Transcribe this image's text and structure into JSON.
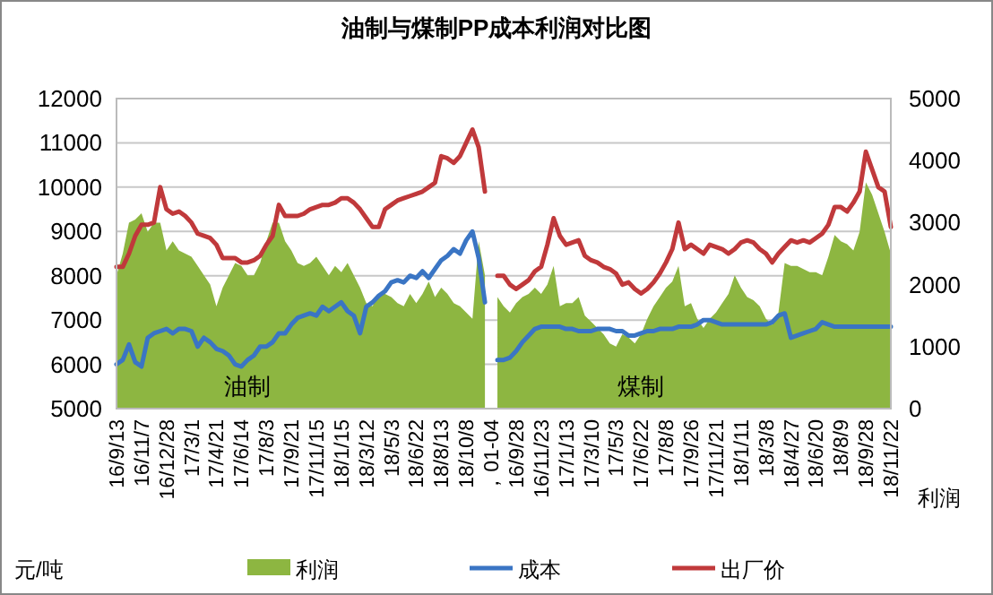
{
  "chart_data": {
    "type": "line",
    "title": "油制与煤制PP成本利润对比图",
    "ylabel": "元/吨",
    "y2label": "利润",
    "annotations": [
      "油制",
      "煤制"
    ],
    "categories": [
      "16/9/13",
      null,
      null,
      null,
      "16/11/7",
      null,
      null,
      null,
      "16/12/28",
      null,
      null,
      null,
      "17/3/1",
      null,
      null,
      null,
      "17/4/21",
      null,
      null,
      null,
      "17/6/14",
      null,
      null,
      null,
      "17/8/3",
      null,
      null,
      null,
      "17/9/21",
      null,
      null,
      null,
      "17/11/15",
      null,
      null,
      null,
      "18/1/15",
      null,
      null,
      null,
      "18/3/12",
      null,
      null,
      null,
      "18/5/3",
      null,
      null,
      null,
      "18/6/22",
      null,
      null,
      null,
      "18/8/13",
      null,
      null,
      null,
      "18/10/8",
      null,
      null,
      null,
      "，01-04",
      null,
      null,
      null,
      "16/9/28",
      null,
      null,
      null,
      "16/11/23",
      null,
      null,
      null,
      "17/1/13",
      null,
      null,
      null,
      "17/3/10",
      null,
      null,
      null,
      "17/5/3",
      null,
      null,
      null,
      "17/6/22",
      null,
      null,
      null,
      "17/8/8",
      null,
      null,
      null,
      "17/9/26",
      null,
      null,
      null,
      "17/11/21",
      null,
      null,
      null,
      "18/1/11",
      null,
      null,
      null,
      "18/3/8",
      null,
      null,
      null,
      "18/4/27",
      null,
      null,
      null,
      "18/6/20",
      null,
      null,
      null,
      "18/8/9",
      null,
      null,
      null,
      "18/9/28",
      null,
      null,
      null,
      "18/11/22"
    ],
    "series": [
      {
        "name": "利润",
        "type": "area",
        "axis": "y2",
        "color": "#8db641",
        "values": [
          2150,
          2500,
          3000,
          3050,
          3150,
          2850,
          3000,
          3000,
          2550,
          2700,
          2550,
          2500,
          2450,
          2300,
          2150,
          2000,
          1650,
          1950,
          2150,
          2350,
          2300,
          2150,
          2150,
          2350,
          2700,
          3000,
          3000,
          2700,
          2550,
          2350,
          2300,
          2350,
          2450,
          2300,
          2150,
          2300,
          2200,
          2350,
          2150,
          1950,
          1700,
          1650,
          1850,
          1850,
          1800,
          1700,
          1650,
          1850,
          1700,
          1850,
          2050,
          1800,
          1950,
          1850,
          1700,
          1650,
          1550,
          1450,
          2700,
          2150,
          null,
          1800,
          1650,
          1550,
          1700,
          1800,
          1850,
          1950,
          1850,
          2000,
          2300,
          1650,
          1700,
          1700,
          1800,
          1500,
          1400,
          1300,
          1200,
          1050,
          1000,
          1200,
          1150,
          1050,
          1200,
          1450,
          1650,
          1800,
          1950,
          2050,
          2300,
          1650,
          1700,
          1450,
          1300,
          1450,
          1550,
          1700,
          1850,
          2150,
          1950,
          1800,
          1750,
          1650,
          1450,
          1350,
          1550,
          2350,
          2300,
          2300,
          2250,
          2200,
          2200,
          2150,
          2450,
          2800,
          2700,
          2650,
          2550,
          2850,
          3650,
          3450,
          3150,
          2850,
          2500
        ]
      },
      {
        "name": "成本",
        "color": "#3a75c4",
        "values": [
          6000,
          6100,
          6450,
          6050,
          5950,
          6600,
          6700,
          6750,
          6800,
          6700,
          6800,
          6800,
          6750,
          6400,
          6600,
          6500,
          6350,
          6300,
          6200,
          6000,
          5950,
          6100,
          6200,
          6400,
          6400,
          6500,
          6700,
          6700,
          6900,
          7050,
          7100,
          7150,
          7100,
          7300,
          7200,
          7300,
          7400,
          7200,
          7100,
          6700,
          7300,
          7400,
          7550,
          7650,
          7850,
          7900,
          7850,
          8000,
          7950,
          8100,
          7950,
          8150,
          8350,
          8450,
          8600,
          8500,
          8800,
          9000,
          8400,
          7400,
          null,
          6100,
          6100,
          6150,
          6300,
          6500,
          6650,
          6800,
          6850,
          6850,
          6850,
          6850,
          6800,
          6800,
          6750,
          6750,
          6750,
          6800,
          6800,
          6800,
          6750,
          6750,
          6650,
          6650,
          6700,
          6750,
          6750,
          6800,
          6800,
          6800,
          6850,
          6850,
          6850,
          6900,
          7000,
          7000,
          6950,
          6900,
          6900,
          6900,
          6900,
          6900,
          6900,
          6900,
          6900,
          6950,
          7100,
          7150,
          6600,
          6650,
          6700,
          6750,
          6800,
          6950,
          6900,
          6850,
          6850,
          6850,
          6850,
          6850,
          6850,
          6850,
          6850,
          6850,
          6850
        ]
      },
      {
        "name": "出厂价",
        "color": "#c0393b",
        "values": [
          8200,
          8200,
          8500,
          8900,
          9150,
          9150,
          9200,
          10000,
          9500,
          9400,
          9450,
          9350,
          9200,
          8950,
          8900,
          8850,
          8700,
          8400,
          8400,
          8400,
          8300,
          8300,
          8350,
          8450,
          8700,
          8900,
          9600,
          9350,
          9350,
          9350,
          9400,
          9500,
          9550,
          9600,
          9600,
          9650,
          9750,
          9750,
          9650,
          9500,
          9300,
          9100,
          9100,
          9500,
          9600,
          9700,
          9750,
          9800,
          9850,
          9900,
          10000,
          10100,
          10700,
          10650,
          10550,
          10700,
          11000,
          11300,
          10900,
          9900,
          null,
          8000,
          8000,
          7800,
          7700,
          7800,
          7900,
          8100,
          8200,
          8700,
          9300,
          8900,
          8700,
          8750,
          8800,
          8450,
          8350,
          8300,
          8200,
          8150,
          8050,
          7800,
          7850,
          7700,
          7600,
          7700,
          7850,
          8050,
          8300,
          8600,
          9200,
          8600,
          8700,
          8600,
          8500,
          8700,
          8650,
          8600,
          8500,
          8600,
          8750,
          8800,
          8750,
          8600,
          8500,
          8300,
          8500,
          8650,
          8800,
          8750,
          8800,
          8750,
          8850,
          8950,
          9150,
          9550,
          9550,
          9450,
          9650,
          9900,
          10800,
          10400,
          10000,
          9900,
          9100
        ]
      }
    ],
    "ylim": [
      5000,
      12000
    ],
    "yticks": [
      5000,
      6000,
      7000,
      8000,
      9000,
      10000,
      11000,
      12000
    ],
    "y2lim": [
      0,
      5000
    ],
    "y2ticks": [
      0,
      1000,
      2000,
      3000,
      4000,
      5000
    ],
    "grid": "y",
    "legend": "bottom"
  }
}
